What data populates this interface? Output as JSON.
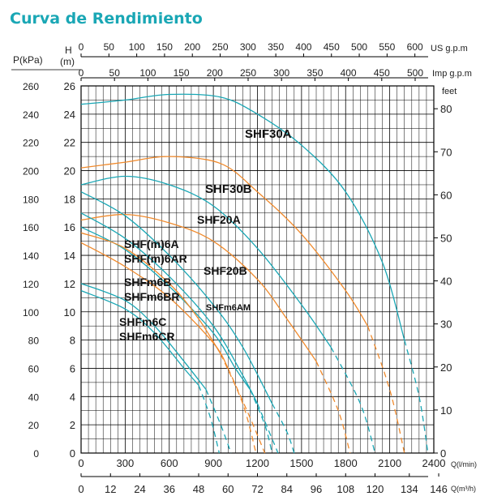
{
  "title": "Curva de Rendimiento",
  "chart_data": {
    "type": "line",
    "title": "Curva de Rendimiento",
    "axes": {
      "left_pressure": {
        "label": "P(kPa)",
        "range": [
          0,
          260
        ],
        "ticks": [
          0,
          20,
          40,
          60,
          80,
          100,
          120,
          140,
          160,
          180,
          200,
          220,
          240,
          260
        ]
      },
      "left_head": {
        "label_top": "H",
        "label_bottom": "(m)",
        "range": [
          0,
          26
        ],
        "ticks": [
          0,
          2,
          4,
          6,
          8,
          10,
          12,
          14,
          16,
          18,
          20,
          22,
          24,
          26
        ]
      },
      "right_feet": {
        "label": "feet",
        "ticks": [
          0,
          10,
          20,
          30,
          40,
          50,
          60,
          70,
          80
        ]
      },
      "top_us_gpm": {
        "label": "US  g.p.m",
        "ticks": [
          0,
          50,
          100,
          150,
          200,
          250,
          300,
          350,
          400,
          450,
          500,
          550,
          600
        ]
      },
      "top_imp_gpm": {
        "label": "Imp  g.p.m",
        "ticks": [
          0,
          50,
          100,
          150,
          200,
          250,
          300,
          350,
          400,
          450,
          500
        ]
      },
      "bottom_lmin": {
        "label": "Q(l/min)",
        "range": [
          0,
          2400
        ],
        "ticks": [
          0,
          300,
          600,
          900,
          1200,
          1500,
          1800,
          2100,
          2400
        ]
      },
      "bottom_m3h": {
        "label": "Q(m³/h)",
        "ticks": [
          0,
          12,
          24,
          36,
          48,
          60,
          72,
          84,
          96,
          108,
          120,
          134,
          146
        ]
      }
    },
    "grid": true,
    "colors": {
      "teal": "#1aa7b5",
      "orange": "#f08a2c",
      "grid": "#000000"
    },
    "series": [
      {
        "name": "SHF30A",
        "color": "#1aa7b5",
        "points": [
          [
            0,
            24.7
          ],
          [
            300,
            25.0
          ],
          [
            600,
            25.4
          ],
          [
            950,
            25.2
          ],
          [
            1200,
            24.0
          ],
          [
            1500,
            21.8
          ],
          [
            1800,
            18.5
          ],
          [
            2050,
            13.5
          ],
          [
            2200,
            8.0
          ]
        ],
        "dashed_points": [
          [
            2200,
            8.0
          ],
          [
            2300,
            4.0
          ],
          [
            2360,
            0
          ]
        ]
      },
      {
        "name": "SHF30B",
        "color": "#f08a2c",
        "points": [
          [
            0,
            20.2
          ],
          [
            300,
            20.6
          ],
          [
            600,
            21.0
          ],
          [
            950,
            20.5
          ],
          [
            1200,
            18.5
          ],
          [
            1500,
            15.5
          ],
          [
            1800,
            11.5
          ],
          [
            1950,
            9.0
          ]
        ],
        "dashed_points": [
          [
            1950,
            9.0
          ],
          [
            2100,
            4.5
          ],
          [
            2200,
            0
          ]
        ]
      },
      {
        "name": "SHF20A",
        "color": "#1aa7b5",
        "points": [
          [
            0,
            19.0
          ],
          [
            300,
            19.6
          ],
          [
            600,
            19.0
          ],
          [
            900,
            17.5
          ],
          [
            1200,
            14.5
          ],
          [
            1500,
            10.5
          ],
          [
            1700,
            7.5
          ]
        ],
        "dashed_points": [
          [
            1700,
            7.5
          ],
          [
            1900,
            3.5
          ],
          [
            2000,
            0
          ]
        ]
      },
      {
        "name": "SHF20B",
        "color": "#f08a2c",
        "points": [
          [
            0,
            16.5
          ],
          [
            300,
            16.9
          ],
          [
            600,
            16.3
          ],
          [
            900,
            15.0
          ],
          [
            1200,
            12.3
          ],
          [
            1400,
            9.5
          ],
          [
            1600,
            6.5
          ]
        ],
        "dashed_points": [
          [
            1600,
            6.5
          ],
          [
            1750,
            3.0
          ],
          [
            1830,
            0
          ]
        ]
      },
      {
        "name": "SHF(m)6A",
        "color": "#1aa7b5",
        "points": [
          [
            0,
            18.5
          ],
          [
            300,
            16.8
          ],
          [
            600,
            14.0
          ],
          [
            900,
            10.5
          ],
          [
            1100,
            7.5
          ],
          [
            1300,
            3.5
          ]
        ],
        "dashed_points": [
          [
            1300,
            3.5
          ],
          [
            1400,
            1.5
          ],
          [
            1450,
            0
          ]
        ]
      },
      {
        "name": "SHF(m)6AR",
        "color": "#1aa7b5",
        "points": [
          [
            0,
            17.0
          ],
          [
            300,
            15.2
          ],
          [
            600,
            12.5
          ],
          [
            900,
            9.0
          ],
          [
            1100,
            5.5
          ],
          [
            1200,
            3.5
          ]
        ],
        "dashed_points": [
          [
            1200,
            3.5
          ],
          [
            1300,
            1.0
          ],
          [
            1340,
            0
          ]
        ]
      },
      {
        "name": "SHF(m)6AM",
        "color": "#1aa7b5",
        "points": [
          [
            0,
            16.0
          ],
          [
            300,
            14.4
          ],
          [
            600,
            11.8
          ],
          [
            900,
            8.5
          ],
          [
            1050,
            6.0
          ],
          [
            1150,
            4.5
          ]
        ],
        "dashed_points": [
          [
            1150,
            4.5
          ],
          [
            1250,
            2.0
          ],
          [
            1300,
            0
          ]
        ]
      },
      {
        "name": "SHFm6B",
        "color": "#f08a2c",
        "points": [
          [
            0,
            14.9
          ],
          [
            300,
            13.2
          ],
          [
            600,
            11.0
          ],
          [
            900,
            7.8
          ],
          [
            1000,
            6.0
          ]
        ],
        "dashed_points": [
          [
            1000,
            6.0
          ],
          [
            1150,
            2.5
          ],
          [
            1250,
            0
          ]
        ]
      },
      {
        "name": "SHFm6BR",
        "color": "#f08a2c",
        "points": [
          [
            0,
            15.6
          ],
          [
            300,
            14.5
          ],
          [
            600,
            12.0
          ],
          [
            800,
            9.5
          ],
          [
            950,
            7.0
          ]
        ],
        "dashed_points": [
          [
            950,
            7.0
          ],
          [
            1100,
            3.5
          ],
          [
            1190,
            0
          ]
        ]
      },
      {
        "name": "SHFm6C",
        "color": "#1aa7b5",
        "points": [
          [
            0,
            12.0
          ],
          [
            300,
            10.8
          ],
          [
            500,
            9.0
          ],
          [
            700,
            6.5
          ],
          [
            850,
            4.5
          ]
        ],
        "dashed_points": [
          [
            850,
            4.5
          ],
          [
            950,
            2.0
          ],
          [
            1020,
            0
          ]
        ]
      },
      {
        "name": "SHFm6CR",
        "color": "#1aa7b5",
        "points": [
          [
            0,
            11.5
          ],
          [
            300,
            10.2
          ],
          [
            500,
            8.5
          ],
          [
            700,
            6.0
          ],
          [
            800,
            4.8
          ]
        ],
        "dashed_points": [
          [
            800,
            4.8
          ],
          [
            880,
            2.5
          ],
          [
            940,
            0
          ]
        ]
      }
    ],
    "labels": [
      {
        "text": "SHF30A",
        "series": "SHF30A"
      },
      {
        "text": "SHF30B",
        "series": "SHF30B"
      },
      {
        "text": "SHF20A",
        "series": "SHF20A"
      },
      {
        "text": "SHF(m)6A",
        "series": "SHF(m)6A"
      },
      {
        "text": "SHF(m)6AR",
        "series": "SHF(m)6AR"
      },
      {
        "text": "SHF20B",
        "series": "SHF20B"
      },
      {
        "text": "SHFm6B",
        "series": "SHFm6B"
      },
      {
        "text": "SHFm6BR",
        "series": "SHFm6BR"
      },
      {
        "text": "SHFm6AM",
        "series": "SHF(m)6AM"
      },
      {
        "text": "SHFm6C",
        "series": "SHFm6C"
      },
      {
        "text": "SHFm6CR",
        "series": "SHFm6CR"
      }
    ]
  }
}
